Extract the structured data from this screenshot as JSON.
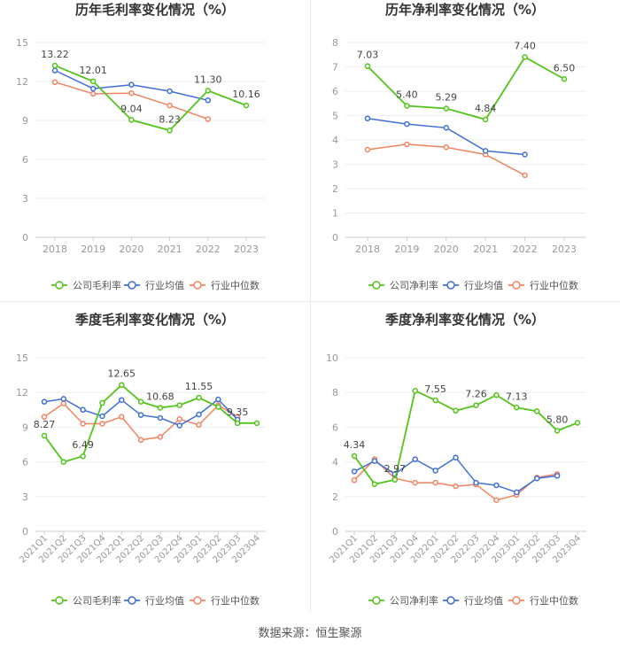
{
  "footer": "数据来源：恒生聚源",
  "legend_labels": {
    "company_gross": "公司毛利率",
    "company_net": "公司净利率",
    "industry_avg": "行业均值",
    "industry_median": "行业中位数"
  },
  "colors": {
    "company": "#52c41a",
    "avg": "#3f6fd8",
    "median": "#f4845f"
  },
  "chart_data": [
    {
      "type": "line",
      "title": "历年毛利率变化情况（%）",
      "categories": [
        "2018",
        "2019",
        "2020",
        "2021",
        "2022",
        "2023"
      ],
      "ylim": [
        0,
        15
      ],
      "yticks": [
        0,
        3,
        6,
        9,
        12,
        15
      ],
      "series": [
        {
          "name": "公司毛利率",
          "values": [
            13.22,
            12.01,
            9.04,
            8.23,
            11.3,
            10.16
          ],
          "labels": [
            "13.22",
            "12.01",
            "9.04",
            "8.23",
            "11.30",
            "10.16"
          ]
        },
        {
          "name": "行业均值",
          "values": [
            12.85,
            11.45,
            11.75,
            11.25,
            10.55,
            null
          ]
        },
        {
          "name": "行业中位数",
          "values": [
            11.95,
            11.05,
            11.1,
            10.15,
            9.1,
            null
          ]
        }
      ],
      "legend": [
        "公司毛利率",
        "行业均值",
        "行业中位数"
      ]
    },
    {
      "type": "line",
      "title": "历年净利率变化情况（%）",
      "categories": [
        "2018",
        "2019",
        "2020",
        "2021",
        "2022",
        "2023"
      ],
      "ylim": [
        0,
        8
      ],
      "yticks": [
        0,
        1,
        2,
        3,
        4,
        5,
        6,
        7,
        8
      ],
      "series": [
        {
          "name": "公司净利率",
          "values": [
            7.03,
            5.4,
            5.29,
            4.84,
            7.4,
            6.5
          ],
          "labels": [
            "7.03",
            "5.40",
            "5.29",
            "4.84",
            "7.40",
            "6.50"
          ]
        },
        {
          "name": "行业均值",
          "values": [
            4.88,
            4.65,
            4.5,
            3.55,
            3.4,
            null
          ]
        },
        {
          "name": "行业中位数",
          "values": [
            3.6,
            3.82,
            3.7,
            3.4,
            2.55,
            null
          ]
        }
      ],
      "legend": [
        "公司净利率",
        "行业均值",
        "行业中位数"
      ]
    },
    {
      "type": "line",
      "title": "季度毛利率变化情况（%）",
      "categories": [
        "2021Q1",
        "2021Q2",
        "2021Q3",
        "2021Q4",
        "2022Q1",
        "2022Q2",
        "2022Q3",
        "2022Q4",
        "2023Q1",
        "2023Q2",
        "2023Q3",
        "2023Q4"
      ],
      "ylim": [
        0,
        15
      ],
      "yticks": [
        0,
        3,
        6,
        9,
        12,
        15
      ],
      "series": [
        {
          "name": "公司毛利率",
          "values": [
            8.27,
            6.0,
            6.49,
            11.1,
            12.65,
            11.2,
            10.68,
            10.9,
            11.55,
            10.75,
            9.35,
            9.35
          ],
          "labels": [
            "8.27",
            "",
            "6.49",
            "",
            "12.65",
            "",
            "10.68",
            "",
            "11.55",
            "",
            "9.35",
            ""
          ]
        },
        {
          "name": "行业均值",
          "values": [
            11.2,
            11.45,
            10.5,
            9.95,
            11.35,
            10.05,
            9.8,
            9.15,
            10.1,
            11.4,
            9.65,
            null
          ]
        },
        {
          "name": "行业中位数",
          "values": [
            9.9,
            11.05,
            9.3,
            9.3,
            9.9,
            7.9,
            8.15,
            9.7,
            9.2,
            10.9,
            9.9,
            null
          ]
        }
      ],
      "legend": [
        "公司毛利率",
        "行业均值",
        "行业中位数"
      ]
    },
    {
      "type": "line",
      "title": "季度净利率变化情况（%）",
      "categories": [
        "2021Q1",
        "2021Q2",
        "2021Q3",
        "2021Q4",
        "2022Q1",
        "2022Q2",
        "2022Q3",
        "2022Q4",
        "2023Q1",
        "2023Q2",
        "2023Q3",
        "2023Q4"
      ],
      "ylim": [
        0,
        10
      ],
      "yticks": [
        0,
        2,
        4,
        6,
        8,
        10
      ],
      "series": [
        {
          "name": "公司净利率",
          "values": [
            4.34,
            2.72,
            2.97,
            8.1,
            7.55,
            6.95,
            7.26,
            7.85,
            7.13,
            6.92,
            5.8,
            6.25
          ],
          "labels": [
            "4.34",
            "",
            "2.97",
            "",
            "7.55",
            "",
            "7.26",
            "",
            "7.13",
            "",
            "5.80",
            ""
          ]
        },
        {
          "name": "行业均值",
          "values": [
            3.45,
            4.05,
            3.3,
            4.15,
            3.5,
            4.25,
            2.8,
            2.65,
            2.25,
            3.05,
            3.2,
            null
          ]
        },
        {
          "name": "行业中位数",
          "values": [
            2.95,
            4.15,
            3.05,
            2.8,
            2.8,
            2.6,
            2.7,
            1.8,
            2.1,
            3.1,
            3.3,
            null
          ]
        }
      ],
      "legend": [
        "公司净利率",
        "行业均值",
        "行业中位数"
      ]
    }
  ]
}
